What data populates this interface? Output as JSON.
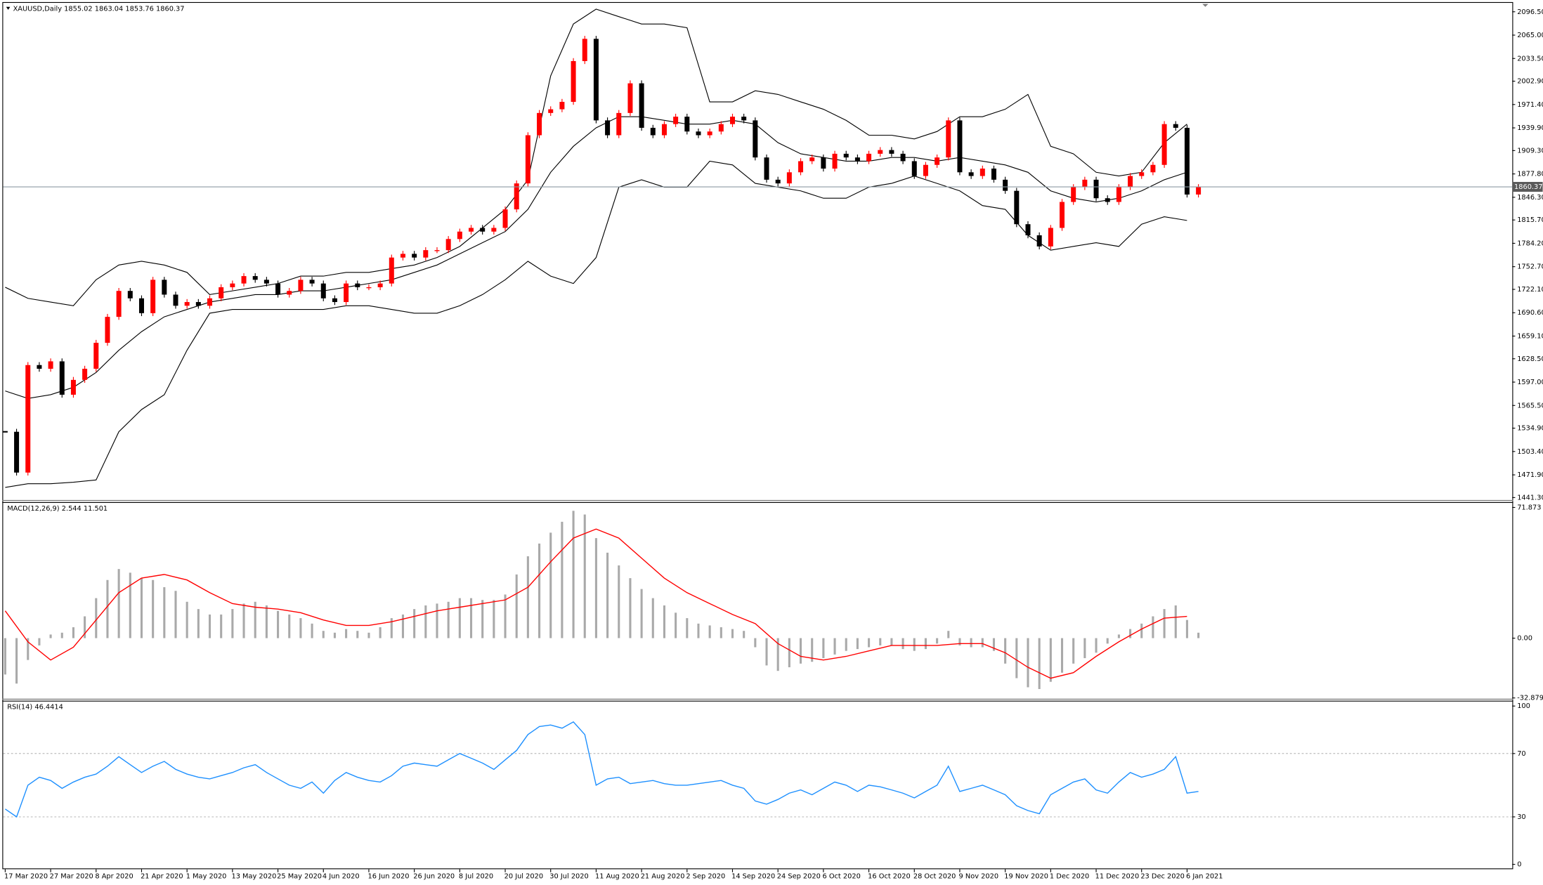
{
  "chart_data": [
    {
      "type": "candlestick",
      "title": "XAUUSD,Daily  1855.02 1863.04 1853.76 1860.37",
      "ylim": [
        1437.3,
        2108.4
      ],
      "yticks": [
        {
          "value": 2096.5,
          "label": "2096.50"
        },
        {
          "value": 2065.0,
          "label": "2065.00"
        },
        {
          "value": 2033.5,
          "label": "2033.50"
        },
        {
          "value": 2002.9,
          "label": "2002.90"
        },
        {
          "value": 1971.4,
          "label": "1971.40"
        },
        {
          "value": 1939.9,
          "label": "1939.90"
        },
        {
          "value": 1909.3,
          "label": "1909.30"
        },
        {
          "value": 1877.8,
          "label": "1877.80"
        },
        {
          "value": 1846.3,
          "label": "1846.30"
        },
        {
          "value": 1815.7,
          "label": "1815.70"
        },
        {
          "value": 1784.2,
          "label": "1784.20"
        },
        {
          "value": 1752.7,
          "label": "1752.70"
        },
        {
          "value": 1722.1,
          "label": "1722.10"
        },
        {
          "value": 1690.6,
          "label": "1690.60"
        },
        {
          "value": 1659.1,
          "label": "1659.10"
        },
        {
          "value": 1628.5,
          "label": "1628.50"
        },
        {
          "value": 1597.0,
          "label": "1597.00"
        },
        {
          "value": 1565.5,
          "label": "1565.50"
        },
        {
          "value": 1534.9,
          "label": "1534.90"
        },
        {
          "value": 1503.4,
          "label": "1503.40"
        },
        {
          "value": 1471.9,
          "label": "1471.90"
        },
        {
          "value": 1441.3,
          "label": "1441.30"
        }
      ],
      "last_price": {
        "value": 1860.37,
        "label": "1860.37"
      },
      "up_color": "#ff0000",
      "down_color": "#000000",
      "values": [
        1530,
        1475,
        1620,
        1615,
        1625,
        1580,
        1600,
        1615,
        1650,
        1685,
        1720,
        1710,
        1690,
        1735,
        1715,
        1700,
        1705,
        1700,
        1710,
        1725,
        1730,
        1740,
        1735,
        1730,
        1715,
        1720,
        1735,
        1730,
        1710,
        1705,
        1730,
        1725,
        1725,
        1730,
        1765,
        1770,
        1765,
        1775,
        1775,
        1790,
        1800,
        1805,
        1800,
        1805,
        1830,
        1865,
        1930,
        1960,
        1965,
        1975,
        2030,
        2060,
        1950,
        1930,
        1960,
        2000,
        1940,
        1930,
        1945,
        1955,
        1935,
        1930,
        1935,
        1945,
        1955,
        1950,
        1900,
        1870,
        1865,
        1880,
        1895,
        1900,
        1885,
        1905,
        1900,
        1895,
        1905,
        1910,
        1905,
        1895,
        1875,
        1890,
        1900,
        1950,
        1880,
        1875,
        1885,
        1870,
        1855,
        1810,
        1795,
        1780,
        1805,
        1840,
        1860,
        1870,
        1845,
        1840,
        1860,
        1875,
        1880,
        1890,
        1945,
        1940,
        1850,
        1860
      ],
      "bands": {
        "color": "#000000",
        "upper": [
          1725,
          1710,
          1705,
          1700,
          1735,
          1755,
          1760,
          1755,
          1745,
          1715,
          1720,
          1725,
          1730,
          1740,
          1740,
          1745,
          1745,
          1750,
          1755,
          1765,
          1780,
          1805,
          1830,
          1870,
          2010,
          2080,
          2100,
          2090,
          2080,
          2080,
          2075,
          1975,
          1975,
          1990,
          1985,
          1975,
          1965,
          1950,
          1930,
          1930,
          1925,
          1935,
          1955,
          1955,
          1965,
          1985,
          1915,
          1905,
          1880,
          1875,
          1880,
          1920,
          1945
        ],
        "middle": [
          1585,
          1575,
          1580,
          1590,
          1610,
          1640,
          1665,
          1685,
          1695,
          1705,
          1710,
          1715,
          1715,
          1720,
          1720,
          1725,
          1730,
          1735,
          1745,
          1755,
          1770,
          1785,
          1800,
          1830,
          1880,
          1915,
          1940,
          1955,
          1955,
          1950,
          1945,
          1945,
          1950,
          1945,
          1920,
          1905,
          1900,
          1895,
          1895,
          1900,
          1900,
          1895,
          1900,
          1895,
          1890,
          1880,
          1855,
          1845,
          1840,
          1845,
          1855,
          1870,
          1880
        ],
        "lower": [
          1455,
          1460,
          1460,
          1462,
          1465,
          1530,
          1560,
          1580,
          1640,
          1690,
          1695,
          1695,
          1695,
          1695,
          1695,
          1700,
          1700,
          1695,
          1690,
          1690,
          1700,
          1715,
          1735,
          1760,
          1740,
          1730,
          1765,
          1860,
          1870,
          1860,
          1860,
          1895,
          1890,
          1865,
          1860,
          1855,
          1845,
          1845,
          1860,
          1865,
          1875,
          1865,
          1855,
          1835,
          1830,
          1795,
          1775,
          1780,
          1785,
          1780,
          1810,
          1820,
          1815
        ]
      }
    },
    {
      "type": "macd",
      "title": "MACD(12,26,9) 2.544 11.501",
      "ylim": [
        -33.0,
        74.6
      ],
      "yticks": [
        71.873,
        {
          "value": 0,
          "label": "0.00"
        },
        -32.879
      ],
      "hist_color": "#a9a9a9",
      "signal_color": "#ff0000",
      "values": [
        -20,
        -25,
        -12,
        -4,
        2,
        3,
        6,
        12,
        22,
        32,
        38,
        36,
        33,
        32,
        28,
        26,
        20,
        16,
        13,
        13,
        16,
        19,
        20,
        18,
        15,
        13,
        11,
        8,
        4,
        3,
        5,
        4,
        3,
        6,
        11,
        13,
        16,
        18,
        19,
        20,
        22,
        22,
        21,
        21,
        24,
        35,
        45,
        52,
        58,
        64,
        70,
        68,
        55,
        47,
        40,
        33,
        27,
        22,
        18,
        14,
        11,
        8,
        7,
        6,
        5,
        4,
        -5,
        -15,
        -18,
        -16,
        -14,
        -13,
        -11,
        -9,
        -7,
        -6,
        -5,
        -4,
        -4,
        -6,
        -7,
        -6,
        -3,
        4,
        -4,
        -5,
        -5,
        -7,
        -14,
        -22,
        -27,
        -28,
        -24,
        -19,
        -14,
        -11,
        -8,
        -3,
        2,
        5,
        8,
        12,
        16,
        18,
        10,
        3
      ],
      "signal": [
        15,
        -2,
        -12,
        -5,
        10,
        25,
        33,
        35,
        32,
        25,
        19,
        17,
        16,
        14,
        10,
        7,
        7,
        9,
        12,
        15,
        17,
        19,
        21,
        28,
        42,
        55,
        60,
        55,
        44,
        33,
        25,
        19,
        13,
        8,
        -3,
        -10,
        -12,
        -10,
        -7,
        -4,
        -4,
        -4,
        -3,
        -3,
        -8,
        -16,
        -22,
        -19,
        -10,
        -2,
        5,
        11,
        12
      ]
    },
    {
      "type": "rsi",
      "title": "RSI(14) 46.4414",
      "ylim": [
        -3.1,
        103.1
      ],
      "yticks": [
        100,
        70,
        30,
        0
      ],
      "levels": [
        70,
        30
      ],
      "color": "#1e90ff",
      "values": [
        35,
        30,
        50,
        55,
        53,
        48,
        52,
        55,
        57,
        62,
        68,
        63,
        58,
        62,
        65,
        60,
        57,
        55,
        54,
        56,
        58,
        61,
        63,
        58,
        54,
        50,
        48,
        52,
        45,
        53,
        58,
        55,
        53,
        52,
        56,
        62,
        64,
        63,
        62,
        66,
        70,
        67,
        64,
        60,
        66,
        72,
        82,
        87,
        88,
        86,
        90,
        82,
        50,
        54,
        55,
        51,
        52,
        53,
        51,
        50,
        50,
        51,
        52,
        53,
        50,
        48,
        40,
        38,
        41,
        45,
        47,
        44,
        48,
        52,
        50,
        46,
        50,
        49,
        47,
        45,
        42,
        46,
        50,
        62,
        46,
        48,
        50,
        47,
        44,
        37,
        34,
        32,
        44,
        48,
        52,
        54,
        47,
        45,
        52,
        58,
        55,
        57,
        60,
        68,
        45,
        46
      ],
      "x_labels": [
        "17 Mar 2020",
        "27 Mar 2020",
        "8 Apr 2020",
        "21 Apr 2020",
        "1 May 2020",
        "13 May 2020",
        "25 May 2020",
        "4 Jun 2020",
        "16 Jun 2020",
        "26 Jun 2020",
        "8 Jul 2020",
        "20 Jul 2020",
        "30 Jul 2020",
        "11 Aug 2020",
        "21 Aug 2020",
        "2 Sep 2020",
        "14 Sep 2020",
        "24 Sep 2020",
        "6 Oct 2020",
        "16 Oct 2020",
        "28 Oct 2020",
        "9 Nov 2020",
        "19 Nov 2020",
        "1 Dec 2020",
        "11 Dec 2020",
        "23 Dec 2020",
        "6 Jan 2021"
      ]
    }
  ]
}
